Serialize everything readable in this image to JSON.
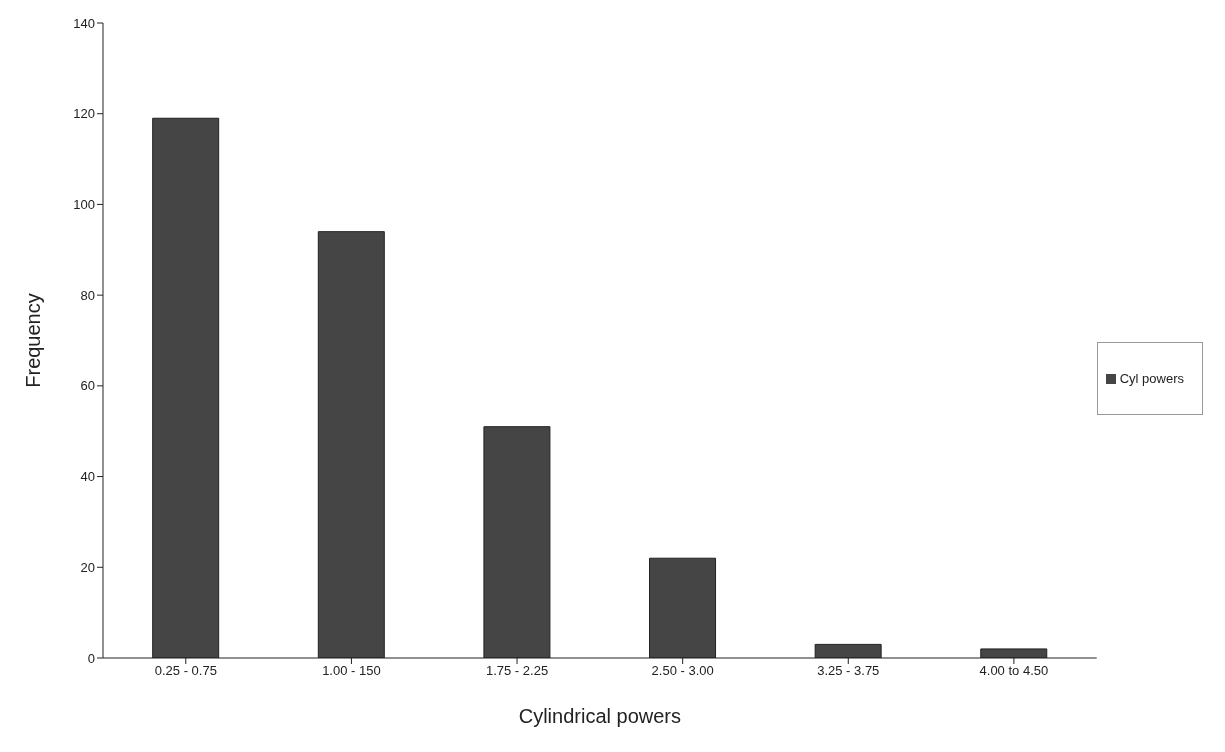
{
  "chart_data": {
    "type": "bar",
    "xlabel": "Cylindrical powers",
    "ylabel": "Frequency",
    "categories": [
      "0.25 - 0.75",
      "1.00 - 150",
      "1.75 - 2.25",
      "2.50 - 3.00",
      "3.25 - 3.75",
      "4.00 to 4.50"
    ],
    "series": [
      {
        "name": "Cyl powers",
        "color": "#454545",
        "values": [
          119,
          94,
          51,
          22,
          3,
          2
        ]
      }
    ],
    "ylim": [
      0,
      140
    ],
    "yticks": [
      0,
      20,
      40,
      60,
      80,
      100,
      120,
      140
    ],
    "grid": false,
    "legend": "right"
  }
}
